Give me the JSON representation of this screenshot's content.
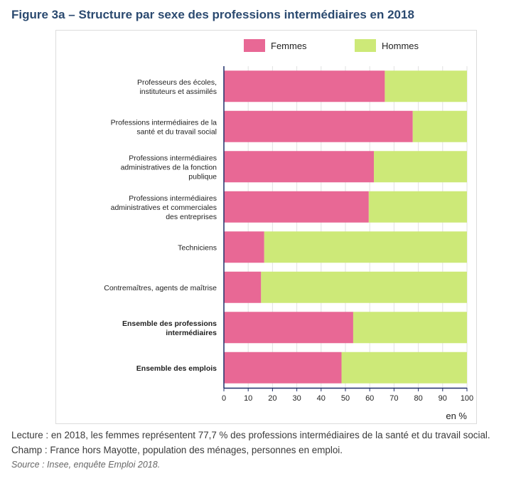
{
  "figure": {
    "title": "Figure 3a – Structure par sexe des professions intermédiaires en 2018"
  },
  "notes": {
    "lecture": "Lecture : en 2018, les femmes représentent 77,7 % des professions intermédiaires de la santé et du travail social.",
    "champ": "Champ : France hors Mayotte, population des ménages, personnes en emploi.",
    "source": "Source : Insee, enquête Emploi 2018."
  },
  "chart_data": {
    "type": "bar",
    "orientation": "horizontal",
    "stacked": true,
    "title": "Figure 3a – Structure par sexe des professions intermédiaires en 2018",
    "xlabel": "en %",
    "ylabel": "",
    "xlim": [
      0,
      100
    ],
    "xticks": [
      0,
      10,
      20,
      30,
      40,
      50,
      60,
      70,
      80,
      90,
      100
    ],
    "grid": true,
    "legend": "top",
    "categories": [
      {
        "label": [
          "Professeurs des écoles,",
          "instituteurs et assimilés"
        ],
        "bold": false
      },
      {
        "label": [
          "Professions intermédiaires de la",
          "santé et du travail social"
        ],
        "bold": false
      },
      {
        "label": [
          "Professions intermédiaires",
          "administratives de la fonction",
          "publique"
        ],
        "bold": false
      },
      {
        "label": [
          "Professions intermédiaires",
          "administratives et commerciales",
          "des entreprises"
        ],
        "bold": false
      },
      {
        "label": [
          "Techniciens"
        ],
        "bold": false
      },
      {
        "label": [
          "Contremaîtres, agents de maîtrise"
        ],
        "bold": false
      },
      {
        "label": [
          "Ensemble des professions",
          "intermédiaires"
        ],
        "bold": true
      },
      {
        "label": [
          "Ensemble des emplois"
        ],
        "bold": true
      }
    ],
    "series": [
      {
        "name": "Femmes",
        "color": "#e86895",
        "values": [
          66.2,
          77.7,
          61.7,
          59.6,
          16.6,
          15.3,
          53.2,
          48.4
        ]
      },
      {
        "name": "Hommes",
        "color": "#cde978",
        "values": [
          33.8,
          22.3,
          38.3,
          40.4,
          83.4,
          84.7,
          46.8,
          51.6
        ]
      }
    ]
  }
}
